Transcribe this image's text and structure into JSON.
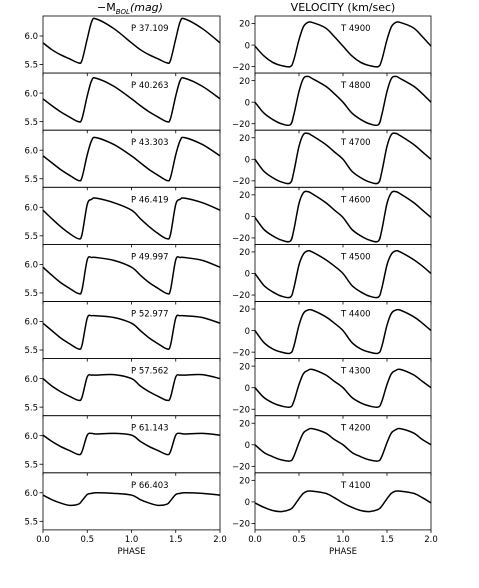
{
  "columns": [
    {
      "title_main": "−M",
      "title_sub": "BOL",
      "title_tail": "(mag)",
      "ylim": [
        5.35,
        6.35
      ],
      "yticks": [
        5.5,
        6.0
      ],
      "ytick_labels": [
        "5.5",
        "6.0"
      ]
    },
    {
      "title": "VELOCITY (km/sec)",
      "ylim": [
        -26,
        27
      ],
      "yticks": [
        -20,
        0,
        20
      ],
      "ytick_labels": [
        "−20",
        "0",
        "20"
      ]
    }
  ],
  "xticks": [
    0.0,
    0.5,
    1.0,
    1.5,
    2.0
  ],
  "xtick_labels": [
    "0.0",
    "0.5",
    "1.0",
    "1.5",
    "2.0"
  ],
  "xlabel": "PHASE",
  "chart_data": [
    {
      "type": "line",
      "column": "magnitude",
      "xlim": [
        0,
        2
      ],
      "ylim": [
        5.35,
        6.35
      ],
      "x": [
        0.0,
        0.1,
        0.2,
        0.3,
        0.4,
        0.44,
        0.5,
        0.55,
        0.6,
        0.8,
        1.0,
        1.1,
        1.2,
        1.3,
        1.4,
        1.44,
        1.5,
        1.55,
        1.6,
        1.8,
        2.0
      ],
      "panels": [
        {
          "label": "P 37.109",
          "y": [
            5.88,
            5.76,
            5.67,
            5.6,
            5.53,
            5.57,
            5.95,
            6.25,
            6.3,
            6.13,
            5.88,
            5.76,
            5.67,
            5.6,
            5.53,
            5.57,
            5.95,
            6.25,
            6.3,
            6.13,
            5.88
          ]
        },
        {
          "label": "P 40.263",
          "y": [
            5.9,
            5.78,
            5.67,
            5.58,
            5.5,
            5.55,
            5.95,
            6.22,
            6.26,
            6.12,
            5.9,
            5.78,
            5.67,
            5.58,
            5.5,
            5.55,
            5.95,
            6.22,
            6.26,
            6.12,
            5.9
          ]
        },
        {
          "label": "P 43.303",
          "y": [
            5.9,
            5.78,
            5.66,
            5.56,
            5.47,
            5.52,
            5.92,
            6.17,
            6.22,
            6.1,
            5.9,
            5.78,
            5.66,
            5.56,
            5.47,
            5.52,
            5.92,
            6.17,
            6.22,
            6.1,
            5.9
          ]
        },
        {
          "label": "P 46.419",
          "y": [
            5.95,
            5.8,
            5.66,
            5.54,
            5.45,
            5.52,
            6.05,
            6.14,
            6.16,
            6.08,
            5.95,
            5.8,
            5.66,
            5.54,
            5.45,
            5.52,
            6.05,
            6.14,
            6.16,
            6.08,
            5.95
          ]
        },
        {
          "label": "P 49.997",
          "y": [
            5.95,
            5.81,
            5.68,
            5.58,
            5.49,
            5.55,
            6.08,
            6.12,
            6.12,
            6.07,
            5.95,
            5.81,
            5.68,
            5.58,
            5.49,
            5.55,
            6.08,
            6.12,
            6.12,
            6.07,
            5.95
          ]
        },
        {
          "label": "P 52.977",
          "y": [
            5.97,
            5.84,
            5.71,
            5.61,
            5.52,
            5.58,
            6.06,
            6.1,
            6.1,
            6.07,
            5.97,
            5.84,
            5.71,
            5.61,
            5.52,
            5.58,
            6.06,
            6.1,
            6.1,
            6.07,
            5.97
          ]
        },
        {
          "label": "P 57.562",
          "y": [
            6.0,
            5.87,
            5.77,
            5.69,
            5.62,
            5.67,
            6.03,
            6.06,
            6.06,
            6.07,
            6.0,
            5.87,
            5.77,
            5.69,
            5.62,
            5.67,
            6.03,
            6.06,
            6.06,
            6.07,
            6.0
          ]
        },
        {
          "label": "P 61.143",
          "y": [
            6.01,
            5.9,
            5.81,
            5.74,
            5.67,
            5.72,
            6.01,
            6.04,
            6.03,
            6.04,
            6.01,
            5.9,
            5.81,
            5.74,
            5.67,
            5.72,
            6.01,
            6.04,
            6.03,
            6.04,
            6.01
          ]
        },
        {
          "label": "P 66.403",
          "y": [
            5.96,
            5.88,
            5.82,
            5.78,
            5.8,
            5.86,
            5.97,
            5.99,
            6.0,
            5.99,
            5.96,
            5.88,
            5.82,
            5.78,
            5.8,
            5.86,
            5.97,
            5.99,
            6.0,
            5.99,
            5.96
          ]
        }
      ]
    },
    {
      "type": "line",
      "column": "velocity",
      "xlim": [
        0,
        2
      ],
      "ylim": [
        -26,
        27
      ],
      "x": [
        0.0,
        0.1,
        0.2,
        0.3,
        0.4,
        0.44,
        0.5,
        0.55,
        0.6,
        0.65,
        0.8,
        0.9,
        1.0,
        1.1,
        1.2,
        1.3,
        1.4,
        1.44,
        1.5,
        1.55,
        1.6,
        1.65,
        1.8,
        1.9,
        2.0
      ],
      "panels": [
        {
          "label": "T 4900",
          "y": [
            -1,
            -10,
            -16,
            -19,
            -20,
            -14,
            5,
            17,
            21,
            21,
            16,
            8,
            -1,
            -10,
            -16,
            -19,
            -20,
            -14,
            5,
            17,
            21,
            21,
            16,
            8,
            -1
          ]
        },
        {
          "label": "T 4800",
          "y": [
            0,
            -10,
            -16,
            -20,
            -21,
            -12,
            10,
            22,
            24,
            22,
            15,
            8,
            0,
            -10,
            -16,
            -20,
            -21,
            -12,
            10,
            22,
            24,
            22,
            15,
            8,
            0
          ]
        },
        {
          "label": "T 4700",
          "y": [
            0,
            -11,
            -17,
            -21,
            -22,
            -12,
            12,
            23,
            24,
            22,
            14,
            7,
            0,
            -11,
            -17,
            -21,
            -22,
            -12,
            12,
            23,
            24,
            22,
            14,
            7,
            0
          ]
        },
        {
          "label": "T 4600",
          "y": [
            -1,
            -12,
            -18,
            -22,
            -23,
            -13,
            12,
            22,
            23,
            21,
            13,
            6,
            -1,
            -12,
            -18,
            -22,
            -23,
            -13,
            12,
            22,
            23,
            21,
            13,
            6,
            -1
          ]
        },
        {
          "label": "T 4500",
          "y": [
            0,
            -11,
            -17,
            -21,
            -22,
            -14,
            8,
            18,
            21,
            20,
            13,
            7,
            0,
            -11,
            -17,
            -21,
            -22,
            -14,
            8,
            18,
            21,
            20,
            13,
            7,
            0
          ]
        },
        {
          "label": "T 4400",
          "y": [
            0,
            -11,
            -17,
            -20,
            -21,
            -15,
            5,
            16,
            19,
            19,
            13,
            7,
            0,
            -11,
            -17,
            -20,
            -21,
            -15,
            5,
            16,
            19,
            19,
            13,
            7,
            0
          ]
        },
        {
          "label": "T 4300",
          "y": [
            0,
            -9,
            -14,
            -17,
            -18,
            -13,
            3,
            13,
            16,
            17,
            12,
            6,
            0,
            -9,
            -14,
            -17,
            -18,
            -13,
            3,
            13,
            16,
            17,
            12,
            6,
            0
          ]
        },
        {
          "label": "T 4200",
          "y": [
            0,
            -7,
            -11,
            -14,
            -15,
            -11,
            2,
            11,
            14,
            15,
            11,
            5,
            0,
            -7,
            -11,
            -14,
            -15,
            -11,
            2,
            11,
            14,
            15,
            11,
            5,
            0
          ]
        },
        {
          "label": "T 4100",
          "y": [
            -1,
            -5,
            -8,
            -9,
            -7,
            -4,
            3,
            8,
            10,
            10,
            8,
            4,
            -1,
            -5,
            -8,
            -9,
            -7,
            -4,
            3,
            8,
            10,
            10,
            8,
            4,
            -1
          ]
        }
      ]
    }
  ]
}
